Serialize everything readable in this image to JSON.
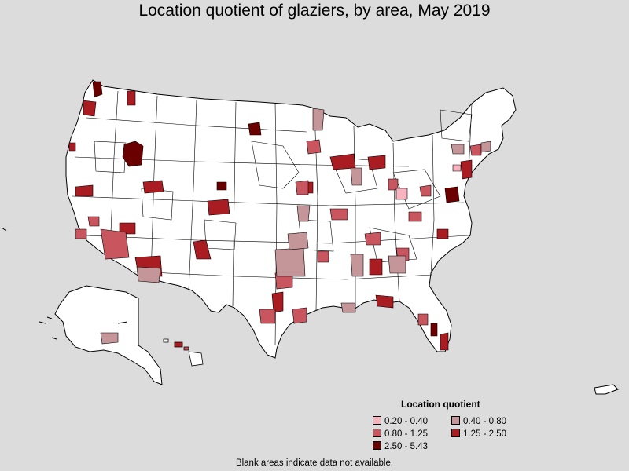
{
  "title": "Location quotient of glaziers, by area, May 2019",
  "legend": {
    "title": "Location quotient",
    "items": [
      {
        "label": "0.20 - 0.40",
        "color": "#f8b3c1"
      },
      {
        "label": "0.40 - 0.80",
        "color": "#c4969a"
      },
      {
        "label": "0.80 - 1.25",
        "color": "#c9565e"
      },
      {
        "label": "1.25 - 2.50",
        "color": "#a81c22"
      },
      {
        "label": "2.50 - 5.43",
        "color": "#6b0000"
      }
    ]
  },
  "footnote": "Blank areas indicate data not available.",
  "colors": {
    "background": "#dcdcdc",
    "land": "#ffffff",
    "border": "#000000"
  }
}
